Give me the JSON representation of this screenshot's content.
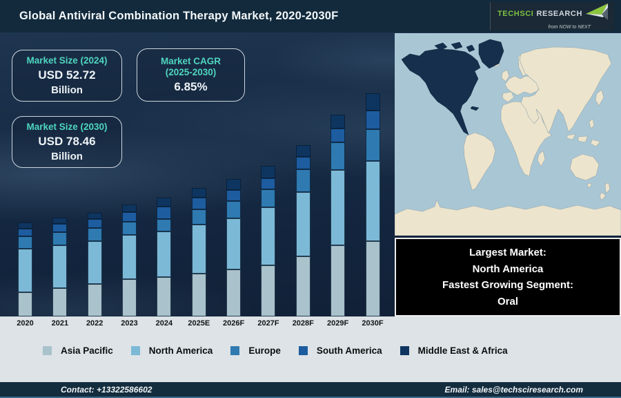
{
  "title": "Global Antiviral Combination Therapy Market, 2020-2030F",
  "logo": {
    "brand_primary": "TechSci",
    "brand_secondary": "Research",
    "tagline": "from NOW to NEXT"
  },
  "callouts": {
    "market_size_2024": {
      "heading": "Market Size (2024)",
      "value": "USD 52.72",
      "unit": "Billion"
    },
    "market_cagr": {
      "heading": "Market CAGR",
      "period": "(2025-2030)",
      "value": "6.85%"
    },
    "market_size_2030": {
      "heading": "Market Size (2030)",
      "value": "USD 78.46",
      "unit": "Billion"
    }
  },
  "chart_data": {
    "type": "bar",
    "subtype": "stacked-vertical",
    "title": "",
    "xlabel": "",
    "ylabel": "",
    "unit_note": "no value axis shown; segment values are bar heights in screen pixels (illustrative), anchored by callouts: 2024 total = USD 52.72B, 2030 total = USD 78.46B",
    "legend_position": "bottom",
    "grid": false,
    "categories": [
      "2020",
      "2021",
      "2022",
      "2023",
      "2024",
      "2025E",
      "2026F",
      "2027F",
      "2028F",
      "2029F",
      "2030F"
    ],
    "series": [
      {
        "name": "Asia Pacific",
        "color": "#a9c2cc",
        "values": [
          35,
          41,
          47,
          54,
          57,
          62,
          68,
          74,
          87,
          103,
          109
        ]
      },
      {
        "name": "North America",
        "color": "#7cb9d7",
        "values": [
          63,
          62,
          62,
          64,
          66,
          71,
          74,
          84,
          93,
          109,
          116
        ]
      },
      {
        "name": "Europe",
        "color": "#2f7ab1",
        "values": [
          18,
          19,
          19,
          19,
          18,
          22,
          25,
          26,
          33,
          40,
          46
        ]
      },
      {
        "name": "South America",
        "color": "#1d5c9f",
        "values": [
          11,
          12,
          13,
          14,
          18,
          17,
          16,
          16,
          18,
          20,
          27
        ]
      },
      {
        "name": "Middle East & Africa",
        "color": "#0e3560",
        "values": [
          9,
          9,
          9,
          11,
          13,
          14,
          16,
          18,
          17,
          20,
          25
        ]
      }
    ],
    "bar_totals": [
      136,
      143,
      150,
      162,
      172,
      186,
      199,
      218,
      248,
      292,
      323
    ]
  },
  "highlight_panel": {
    "lines": [
      "Largest Market:",
      "North America",
      "Fastest Growing Segment:",
      "Oral"
    ]
  },
  "map": {
    "highlighted_region": "North America"
  },
  "footer": {
    "contact": "Contact: +13322586602",
    "email": "Email: sales@techsciresearch.com"
  },
  "colors": {
    "title_bar": "#122a3c",
    "logo_panel": "#1b2937",
    "logo_green": "#7dc242",
    "logo_silver": "#d2d9de",
    "teal": "#4fd6bf",
    "band": "#dde3e6",
    "footer": "#132c3e",
    "footer_line": "#3d6c8c",
    "black_box": "#000000",
    "ocean": "#a9c6d4",
    "land": "#ece4cc",
    "land_stroke": "#93a7b0",
    "map_highlight": "#152f4c"
  }
}
